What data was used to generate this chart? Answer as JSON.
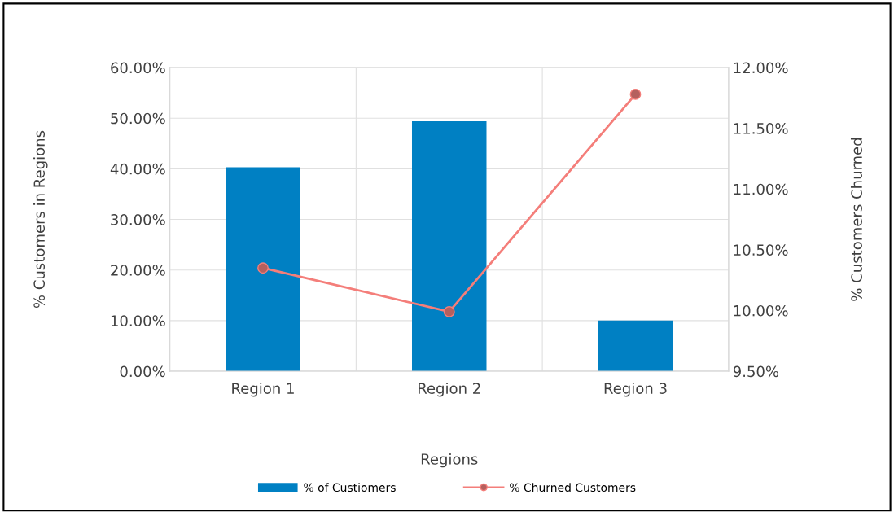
{
  "chart_data": {
    "type": "bar",
    "xlabel": "Regions",
    "ylabel": "% Customers in Regions",
    "y2label": "% Customers Churned",
    "categories": [
      "Region 1",
      "Region 2",
      "Region 3"
    ],
    "series": [
      {
        "name": "% of Custiomers",
        "color": "#0080c3",
        "values": [
          40.3,
          49.4,
          10.0
        ]
      },
      {
        "name": "% Churned Customers",
        "type": "line",
        "axis": "y2",
        "color": "#f47e7a",
        "values": [
          10.35,
          9.99,
          11.78
        ]
      }
    ],
    "ylim": [
      0,
      60
    ],
    "yticks": [
      {
        "value": 0,
        "label": "0.00%"
      },
      {
        "value": 10,
        "label": "10.00%"
      },
      {
        "value": 20,
        "label": "20.00%"
      },
      {
        "value": 30,
        "label": "30.00%"
      },
      {
        "value": 40,
        "label": "40.00%"
      },
      {
        "value": 50,
        "label": "50.00%"
      },
      {
        "value": 60,
        "label": "60.00%"
      }
    ],
    "y2lim": [
      9.5,
      12
    ],
    "y2ticks": [
      {
        "value": 9.5,
        "label": "9.50%"
      },
      {
        "value": 10,
        "label": "10.00%"
      },
      {
        "value": 10.5,
        "label": "10.50%"
      },
      {
        "value": 11,
        "label": "11.00%"
      },
      {
        "value": 11.5,
        "label": "11.50%"
      },
      {
        "value": 12,
        "label": "12.00%"
      }
    ],
    "grid": true,
    "legend": "bottom",
    "marker": "circle",
    "line_style": "solid"
  }
}
